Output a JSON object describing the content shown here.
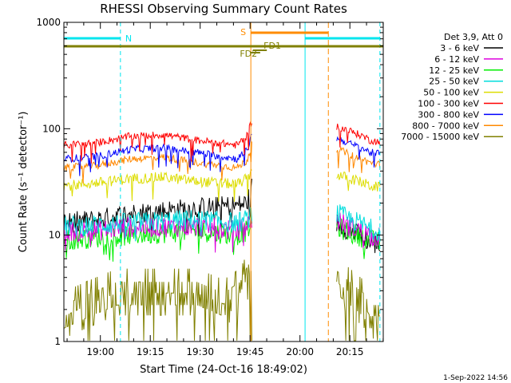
{
  "chart_data": {
    "type": "line",
    "title": "RHESSI Observing Summary Count Rates",
    "xlabel": "Start Time (24-Oct-16 18:49:02)",
    "ylabel": "Count Rate (s⁻¹ detector⁻¹)",
    "yscale": "log",
    "ylim": [
      1,
      1000
    ],
    "xlim_minutes": [
      0,
      96
    ],
    "x_tick_labels": [
      "19:00",
      "19:15",
      "19:30",
      "19:45",
      "20:00",
      "20:15"
    ],
    "x_tick_positions_minutes": [
      10.97,
      25.97,
      40.97,
      55.97,
      70.97,
      85.97
    ],
    "y_tick_labels": [
      "1",
      "10",
      "100",
      "1000"
    ],
    "y_tick_values": [
      1,
      10,
      100,
      1000
    ],
    "legend_title": "Det 3,9, Att 0",
    "legend_position": "right",
    "series": [
      {
        "name": "3 - 6 keV",
        "color": "#000000",
        "x": [
          0,
          10,
          20,
          30,
          40,
          52,
          55,
          56.5,
          82,
          86,
          90,
          92,
          95
        ],
        "y": [
          13,
          14,
          16,
          17,
          18,
          19,
          20,
          28,
          13,
          11,
          9.5,
          8.5,
          8
        ]
      },
      {
        "name": "6 - 12 keV",
        "color": "#dd00dd",
        "x": [
          0,
          10,
          20,
          30,
          40,
          52,
          55,
          56.5,
          82,
          86,
          90,
          92,
          95
        ],
        "y": [
          11,
          11,
          12,
          12,
          12,
          11,
          12,
          14,
          14,
          12,
          11,
          10,
          9.5
        ]
      },
      {
        "name": "12 - 25 keV",
        "color": "#00ee00",
        "x": [
          0,
          10,
          20,
          30,
          40,
          52,
          55,
          56.5,
          82,
          86,
          90,
          92,
          95
        ],
        "y": [
          9,
          9.5,
          10,
          10.5,
          11,
          10,
          11,
          13,
          12,
          10.5,
          9.5,
          9,
          8.5
        ]
      },
      {
        "name": "25 - 50 keV",
        "color": "#00dddd",
        "x": [
          0,
          10,
          20,
          30,
          40,
          52,
          55,
          56.5,
          82,
          86,
          90,
          92,
          95
        ],
        "y": [
          12,
          12.5,
          13,
          13.5,
          14,
          13,
          14,
          16,
          16,
          14,
          12.5,
          11.5,
          11
        ]
      },
      {
        "name": "50 - 100 keV",
        "color": "#dddd00",
        "x": [
          0,
          10,
          20,
          30,
          40,
          52,
          55,
          56.5,
          82,
          86,
          90,
          92,
          95
        ],
        "y": [
          29,
          31,
          34,
          35,
          32,
          30,
          34,
          40,
          37,
          34,
          31,
          29,
          28
        ]
      },
      {
        "name": "100 - 300 keV",
        "color": "#ff0000",
        "x": [
          0,
          10,
          20,
          30,
          40,
          52,
          55,
          56.5,
          82,
          86,
          90,
          92,
          95
        ],
        "y": [
          70,
          74,
          85,
          88,
          78,
          70,
          85,
          120,
          105,
          95,
          85,
          78,
          75
        ]
      },
      {
        "name": "300 - 800 keV",
        "color": "#0000ff",
        "x": [
          0,
          10,
          20,
          30,
          40,
          52,
          55,
          56.5,
          82,
          86,
          90,
          92,
          95
        ],
        "y": [
          52,
          55,
          64,
          66,
          60,
          52,
          62,
          88,
          82,
          72,
          65,
          60,
          58
        ]
      },
      {
        "name": "800 - 7000 keV",
        "color": "#ff8800",
        "x": [
          0,
          10,
          20,
          30,
          40,
          52,
          55,
          56.5,
          82,
          86,
          90,
          92,
          95
        ],
        "y": [
          43,
          45,
          52,
          54,
          48,
          43,
          50,
          70,
          65,
          57,
          51,
          48,
          46
        ]
      },
      {
        "name": "7000 - 15000 keV",
        "color": "#808000",
        "x": [
          0,
          8,
          16,
          24,
          32,
          40,
          48,
          53,
          55,
          56.5,
          82,
          86,
          90,
          92,
          95
        ],
        "y": [
          2,
          2.6,
          3.3,
          3.3,
          3.3,
          3.3,
          2.6,
          3.3,
          4.5,
          5.5,
          4.2,
          3.3,
          2.6,
          2,
          2
        ]
      }
    ],
    "markers": {
      "n_label": "N",
      "s_label": "S",
      "fd1_label": "FD1",
      "fd2_label": "FD2",
      "night_intervals_minutes": [
        [
          0,
          17
        ],
        [
          72.5,
          95
        ]
      ],
      "saa_interval_minutes": [
        56.2,
        79.5
      ],
      "fd1_interval_minutes": [
        56.8,
        61
      ],
      "fd2_interval_minutes": [
        56,
        59
      ],
      "cyan_line_color": "#00e5ee",
      "orange_line_color": "#ff8c00",
      "olive_line_color": "#808000"
    }
  },
  "footer": {
    "date": "1-Sep-2022 14:56"
  }
}
